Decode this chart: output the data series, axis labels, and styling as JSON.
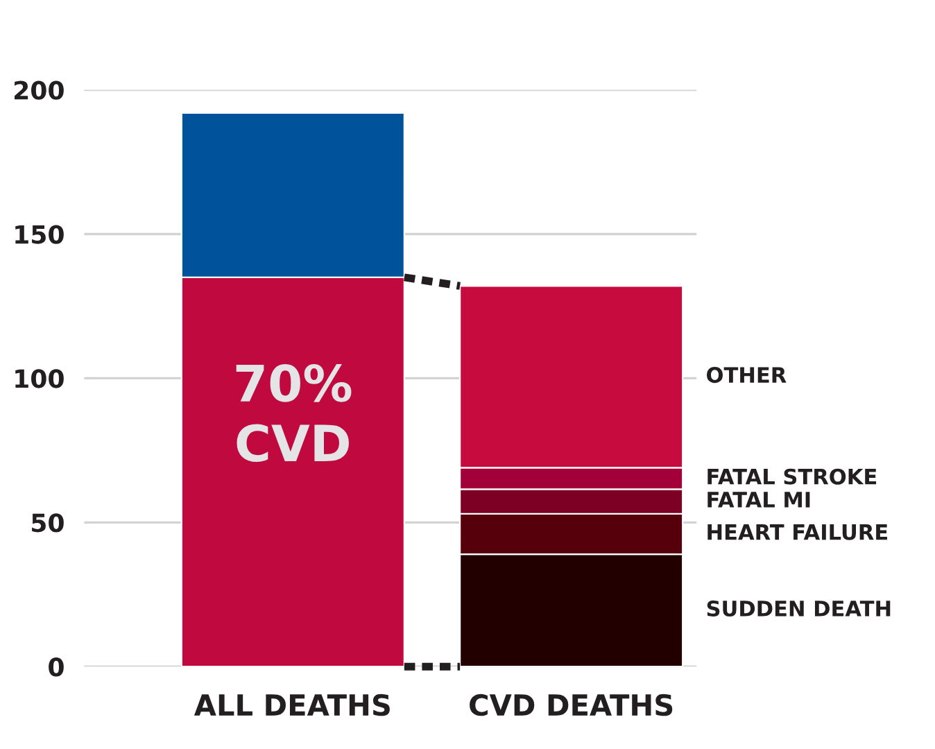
{
  "chart_data": {
    "type": "bar",
    "stacked": true,
    "categories": [
      "ALL DEATHS",
      "CVD DEATHS"
    ],
    "series": [
      {
        "color": "#c0093e",
        "values": [
          135,
          null
        ]
      },
      {
        "color": "#00529b",
        "values": [
          57,
          null
        ]
      },
      {
        "name": "SUDDEN DEATH",
        "color": "#230000",
        "values": [
          null,
          39
        ]
      },
      {
        "name": "HEART FAILURE",
        "color": "#55000a",
        "values": [
          null,
          14
        ]
      },
      {
        "name": "FATAL MI",
        "color": "#7d0024",
        "values": [
          null,
          8.5
        ]
      },
      {
        "name": "FATAL STROKE",
        "color": "#a3003a",
        "values": [
          null,
          7.5
        ]
      },
      {
        "name": "OTHER",
        "color": "#c80b3e",
        "values": [
          null,
          63
        ]
      }
    ],
    "annotations": [
      "70%\nCVD"
    ],
    "ylim": [
      0,
      200
    ],
    "yticks": [
      0,
      50,
      100,
      150,
      200
    ],
    "grid": "y",
    "legend": false
  }
}
